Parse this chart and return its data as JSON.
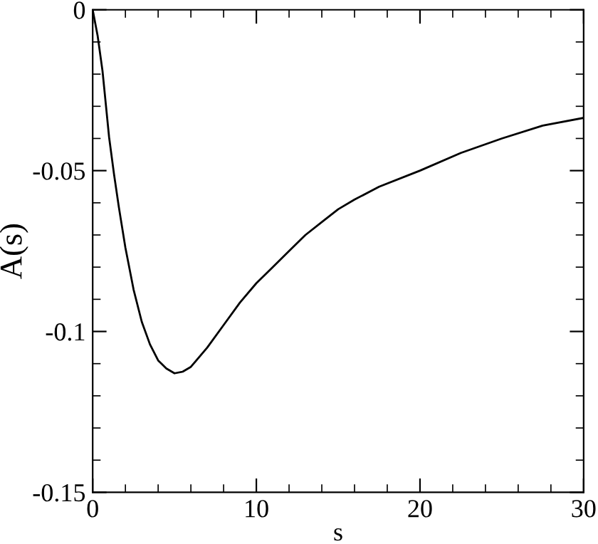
{
  "chart_data": {
    "type": "line",
    "xlabel": "s",
    "ylabel": "A(s)",
    "x": [
      0,
      0.3,
      0.6,
      1,
      1.3,
      1.6,
      2,
      2.5,
      3,
      3.5,
      4,
      4.5,
      5,
      5.5,
      6,
      7,
      8,
      9,
      10,
      11,
      12,
      13,
      14,
      15,
      16,
      17.5,
      20,
      22.5,
      25,
      27.5,
      30
    ],
    "series": [
      {
        "color": "#000000",
        "values": [
          0,
          -0.008,
          -0.019,
          -0.0395,
          -0.051,
          -0.0614,
          -0.074,
          -0.087,
          -0.097,
          -0.104,
          -0.109,
          -0.1115,
          -0.113,
          -0.1125,
          -0.111,
          -0.105,
          -0.098,
          -0.091,
          -0.085,
          -0.08,
          -0.075,
          -0.07,
          -0.066,
          -0.062,
          -0.059,
          -0.055,
          -0.05,
          -0.0445,
          -0.04,
          -0.036,
          -0.0336
        ]
      }
    ],
    "xlim": [
      0,
      30
    ],
    "ylim": [
      -0.15,
      0
    ],
    "xticks": [
      0,
      10,
      20,
      30
    ],
    "yticks": [
      -0.15,
      -0.1,
      -0.05,
      0
    ],
    "grid": false,
    "legend": false,
    "marker": "none",
    "line_style": "solid"
  }
}
